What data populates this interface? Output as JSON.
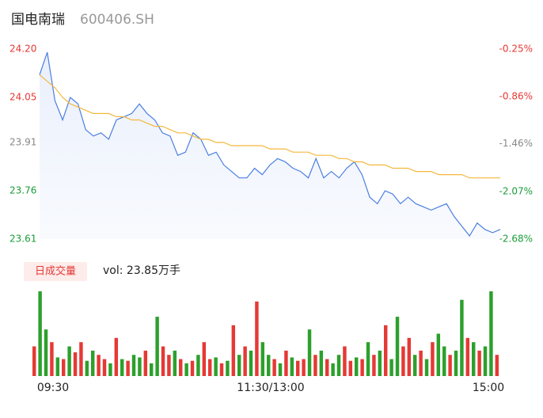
{
  "header": {
    "name": "国电南瑞",
    "code": "600406.SH"
  },
  "chart_data": [
    {
      "type": "line",
      "xlim": [
        0,
        240
      ],
      "xticks": [
        {
          "value": 0,
          "label": "09:30"
        },
        {
          "value": 120,
          "label": "11:30/13:00"
        },
        {
          "value": 240,
          "label": "15:00"
        }
      ],
      "ylim": [
        23.61,
        24.2
      ],
      "yticks": [
        {
          "value": 24.2,
          "label": "24.20",
          "color": "#e53935"
        },
        {
          "value": 24.05,
          "label": "24.05",
          "color": "#e53935"
        },
        {
          "value": 23.91,
          "label": "23.91",
          "color": "#888888"
        },
        {
          "value": 23.76,
          "label": "23.76",
          "color": "#1a9c3a"
        },
        {
          "value": 23.61,
          "label": "23.61",
          "color": "#1a9c3a"
        }
      ],
      "y2lim": [
        -2.68,
        -0.25
      ],
      "y2ticks": [
        {
          "value": -0.25,
          "label": "-0.25%",
          "color": "#e53935"
        },
        {
          "value": -0.86,
          "label": "-0.86%",
          "color": "#e53935"
        },
        {
          "value": -1.46,
          "label": "-1.46%",
          "color": "#888888"
        },
        {
          "value": -2.07,
          "label": "-2.07%",
          "color": "#1a9c3a"
        },
        {
          "value": -2.68,
          "label": "-2.68%",
          "color": "#1a9c3a"
        }
      ],
      "x": [
        0,
        4,
        8,
        12,
        16,
        20,
        24,
        28,
        32,
        36,
        40,
        44,
        48,
        52,
        56,
        60,
        64,
        68,
        72,
        76,
        80,
        84,
        88,
        92,
        96,
        100,
        104,
        108,
        112,
        116,
        120,
        124,
        128,
        132,
        136,
        140,
        144,
        148,
        152,
        156,
        160,
        164,
        168,
        172,
        176,
        180,
        184,
        188,
        192,
        196,
        200,
        204,
        208,
        212,
        216,
        220,
        224,
        228,
        232,
        236,
        240
      ],
      "series": [
        {
          "color": "#4a7fe0",
          "values": [
            24.12,
            24.19,
            24.04,
            23.98,
            24.05,
            24.03,
            23.95,
            23.93,
            23.94,
            23.92,
            23.98,
            23.99,
            24.0,
            24.03,
            24.0,
            23.98,
            23.94,
            23.93,
            23.87,
            23.88,
            23.94,
            23.92,
            23.87,
            23.88,
            23.84,
            23.82,
            23.8,
            23.8,
            23.83,
            23.81,
            23.84,
            23.86,
            23.85,
            23.83,
            23.82,
            23.8,
            23.86,
            23.8,
            23.82,
            23.8,
            23.83,
            23.85,
            23.81,
            23.74,
            23.72,
            23.76,
            23.75,
            23.72,
            23.74,
            23.72,
            23.71,
            23.7,
            23.71,
            23.72,
            23.68,
            23.65,
            23.62,
            23.66,
            23.64,
            23.63,
            23.64
          ]
        },
        {
          "color": "#f5b83d",
          "values": [
            24.12,
            24.1,
            24.08,
            24.05,
            24.03,
            24.02,
            24.01,
            24.0,
            24.0,
            24.0,
            23.99,
            23.99,
            23.98,
            23.98,
            23.97,
            23.96,
            23.96,
            23.95,
            23.94,
            23.94,
            23.93,
            23.92,
            23.92,
            23.91,
            23.91,
            23.9,
            23.9,
            23.9,
            23.9,
            23.9,
            23.89,
            23.89,
            23.89,
            23.88,
            23.88,
            23.88,
            23.87,
            23.87,
            23.87,
            23.86,
            23.86,
            23.85,
            23.85,
            23.84,
            23.84,
            23.84,
            23.83,
            23.83,
            23.83,
            23.82,
            23.82,
            23.82,
            23.81,
            23.81,
            23.81,
            23.81,
            23.8,
            23.8,
            23.8,
            23.8,
            23.8
          ]
        }
      ]
    },
    {
      "type": "bar",
      "badge": "日成交量",
      "label": "vol: 23.85万手",
      "xlim": [
        0,
        240
      ],
      "ylim": [
        0,
        100
      ],
      "x": [
        0,
        3,
        6,
        9,
        12,
        15,
        18,
        21,
        24,
        27,
        30,
        33,
        36,
        39,
        42,
        45,
        48,
        51,
        54,
        57,
        60,
        63,
        66,
        69,
        72,
        75,
        78,
        81,
        84,
        87,
        90,
        93,
        96,
        99,
        102,
        105,
        108,
        111,
        114,
        117,
        120,
        123,
        126,
        129,
        132,
        135,
        138,
        141,
        144,
        147,
        150,
        153,
        156,
        159,
        162,
        165,
        168,
        171,
        174,
        177,
        180,
        183,
        186,
        189,
        192,
        195,
        198,
        201,
        204,
        207,
        210,
        213,
        216,
        219,
        222,
        225,
        228,
        231,
        234,
        237
      ],
      "values": [
        35,
        100,
        55,
        40,
        22,
        20,
        35,
        28,
        40,
        18,
        30,
        25,
        20,
        15,
        45,
        20,
        18,
        25,
        22,
        30,
        15,
        70,
        35,
        25,
        30,
        20,
        15,
        18,
        25,
        40,
        20,
        22,
        15,
        18,
        60,
        25,
        35,
        30,
        88,
        40,
        25,
        20,
        15,
        30,
        22,
        18,
        20,
        55,
        25,
        30,
        20,
        15,
        25,
        35,
        18,
        22,
        20,
        40,
        25,
        30,
        60,
        20,
        70,
        35,
        45,
        25,
        30,
        20,
        40,
        50,
        35,
        25,
        30,
        90,
        45,
        40,
        30,
        35,
        100,
        25
      ],
      "colors": [
        "#e53935",
        "#2ca02c",
        "#2ca02c",
        "#e53935",
        "#2ca02c",
        "#e53935",
        "#2ca02c",
        "#e53935",
        "#e53935",
        "#2ca02c",
        "#2ca02c",
        "#e53935",
        "#e53935",
        "#2ca02c",
        "#e53935",
        "#2ca02c",
        "#e53935",
        "#2ca02c",
        "#2ca02c",
        "#e53935",
        "#2ca02c",
        "#2ca02c",
        "#e53935",
        "#e53935",
        "#2ca02c",
        "#e53935",
        "#2ca02c",
        "#e53935",
        "#2ca02c",
        "#e53935",
        "#e53935",
        "#2ca02c",
        "#e53935",
        "#2ca02c",
        "#e53935",
        "#2ca02c",
        "#e53935",
        "#2ca02c",
        "#e53935",
        "#2ca02c",
        "#2ca02c",
        "#e53935",
        "#2ca02c",
        "#e53935",
        "#2ca02c",
        "#e53935",
        "#e53935",
        "#2ca02c",
        "#e53935",
        "#2ca02c",
        "#e53935",
        "#2ca02c",
        "#2ca02c",
        "#e53935",
        "#e53935",
        "#2ca02c",
        "#e53935",
        "#2ca02c",
        "#e53935",
        "#2ca02c",
        "#e53935",
        "#2ca02c",
        "#2ca02c",
        "#e53935",
        "#e53935",
        "#2ca02c",
        "#e53935",
        "#2ca02c",
        "#e53935",
        "#2ca02c",
        "#2ca02c",
        "#e53935",
        "#2ca02c",
        "#2ca02c",
        "#e53935",
        "#2ca02c",
        "#e53935",
        "#2ca02c",
        "#2ca02c",
        "#e53935"
      ]
    }
  ]
}
